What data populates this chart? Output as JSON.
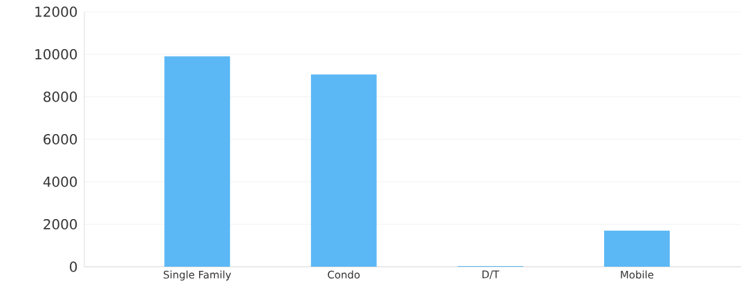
{
  "chart_data": {
    "type": "bar",
    "categories": [
      "Single Family",
      "Condo",
      "D/T",
      "Mobile"
    ],
    "values": [
      9900,
      9050,
      30,
      1700
    ],
    "color": "#5cb8f5",
    "ylim": [
      0,
      12000
    ],
    "yticks": [
      0,
      2000,
      4000,
      6000,
      8000,
      10000,
      12000
    ],
    "grid": "y"
  }
}
